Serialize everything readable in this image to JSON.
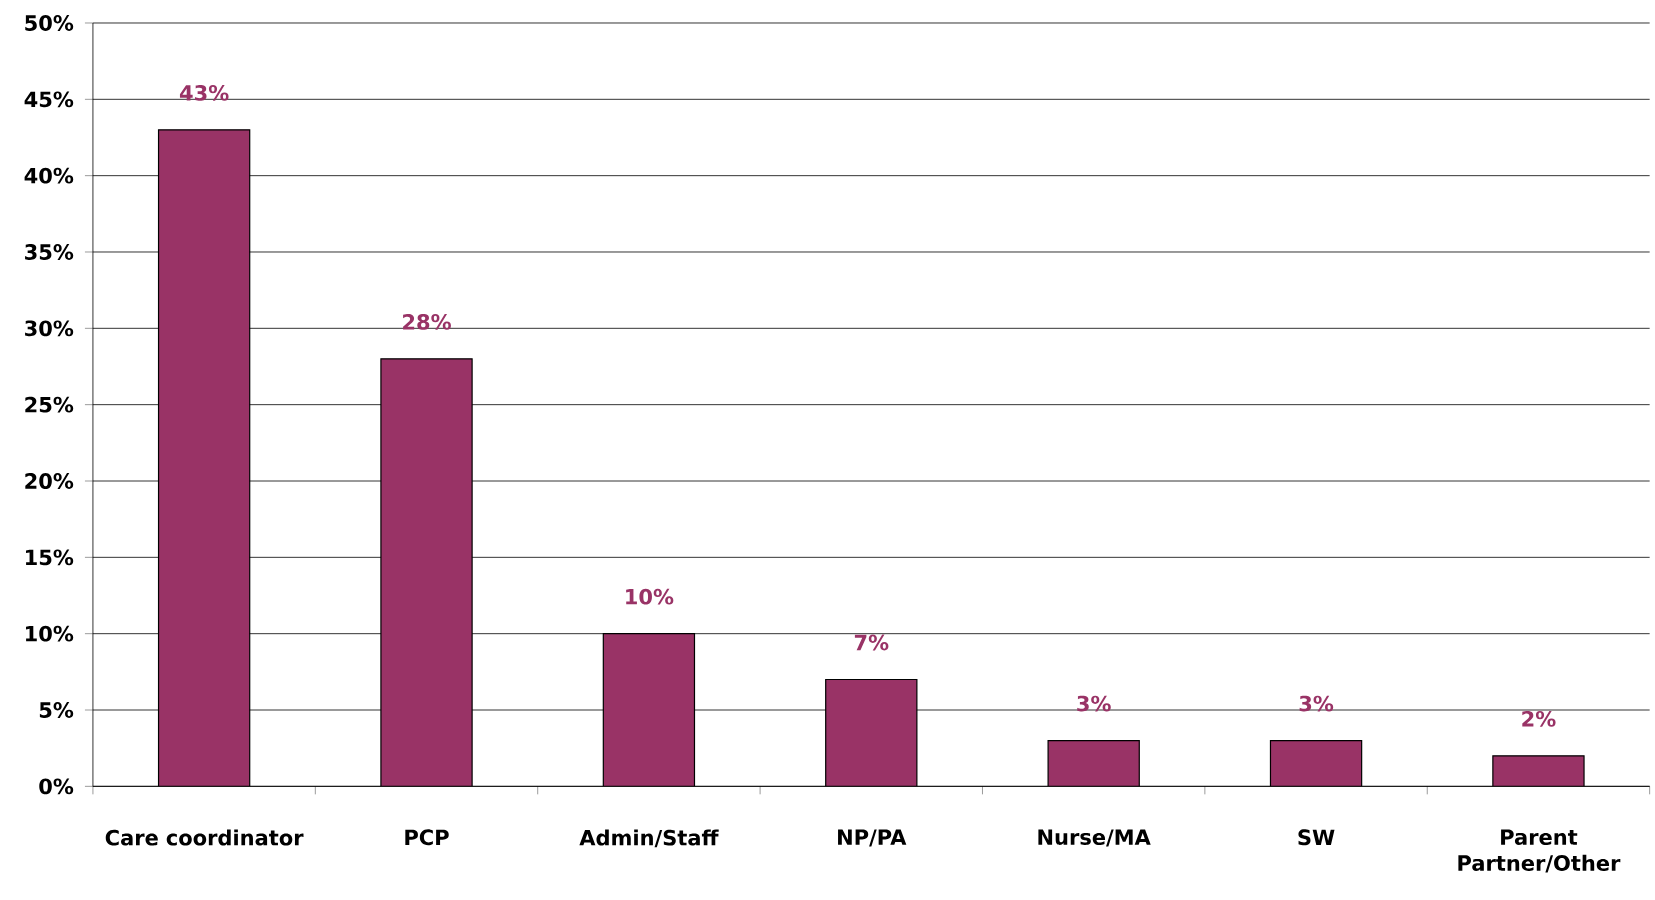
{
  "chart_data": {
    "type": "bar",
    "categories": [
      "Care coordinator",
      "PCP",
      "Admin/Staff",
      "NP/PA",
      "Nurse/MA",
      "SW",
      "Parent Partner/Other"
    ],
    "values": [
      43,
      28,
      10,
      7,
      3,
      3,
      2
    ],
    "value_labels": [
      "43%",
      "28%",
      "10%",
      "7%",
      "3%",
      "3%",
      "2%"
    ],
    "color": "#993366",
    "ylim": [
      0,
      50
    ],
    "yticks": [
      {
        "value": 0,
        "label": "0%"
      },
      {
        "value": 5,
        "label": "5%"
      },
      {
        "value": 10,
        "label": "10%"
      },
      {
        "value": 15,
        "label": "15%"
      },
      {
        "value": 20,
        "label": "20%"
      },
      {
        "value": 25,
        "label": "25%"
      },
      {
        "value": 30,
        "label": "30%"
      },
      {
        "value": 35,
        "label": "35%"
      },
      {
        "value": 40,
        "label": "40%"
      },
      {
        "value": 45,
        "label": "45%"
      },
      {
        "value": 50,
        "label": "50%"
      }
    ],
    "grid": "y"
  }
}
